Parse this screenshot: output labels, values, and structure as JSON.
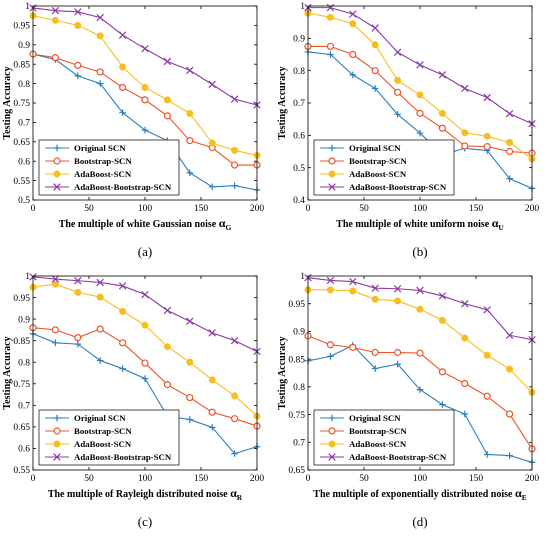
{
  "panel_labels": [
    "(a)",
    "(b)",
    "(c)",
    "(d)"
  ],
  "legend": {
    "entries": [
      "Original SCN",
      "Bootstrap-SCN",
      "AdaBoost-SCN",
      "AdaBoost-Bootstrap-SCN"
    ],
    "placement": "bottom-left"
  },
  "series_style": [
    {
      "color": "#2a7fbf",
      "marker": "plus"
    },
    {
      "color": "#f0522a",
      "marker": "circle"
    },
    {
      "color": "#f7bf1e",
      "marker": "filled-circle"
    },
    {
      "color": "#8c3aa5",
      "marker": "x"
    }
  ],
  "chart_data": [
    {
      "type": "line",
      "ylabel": "Testing Accuracy",
      "xlabel": "The multiple of white Gaussian noise",
      "xlabel_symbol": "α",
      "xlabel_sub": "G",
      "xlim": [
        0,
        200
      ],
      "ylim": [
        0.5,
        1.0
      ],
      "xticks": [
        0,
        50,
        100,
        150,
        200
      ],
      "yticks": [
        0.5,
        0.55,
        0.6,
        0.65,
        0.7,
        0.75,
        0.8,
        0.85,
        0.9,
        0.95,
        1.0
      ],
      "ytick_labels": [
        "0.5",
        "0.55",
        "0.6",
        "0.65",
        "0.7",
        "0.75",
        "0.8",
        "0.85",
        "0.9",
        "0.95",
        "1"
      ],
      "x": [
        0,
        20,
        40,
        60,
        80,
        100,
        120,
        140,
        160,
        180,
        200
      ],
      "series": [
        {
          "name": "Original SCN",
          "values": [
            0.876,
            0.862,
            0.82,
            0.8,
            0.725,
            0.68,
            0.653,
            0.57,
            0.534,
            0.537,
            0.526
          ]
        },
        {
          "name": "Bootstrap-SCN",
          "values": [
            0.876,
            0.867,
            0.847,
            0.83,
            0.79,
            0.758,
            0.717,
            0.653,
            0.635,
            0.59,
            0.59
          ]
        },
        {
          "name": "AdaBoost-SCN",
          "values": [
            0.975,
            0.963,
            0.95,
            0.923,
            0.843,
            0.79,
            0.758,
            0.723,
            0.647,
            0.628,
            0.615
          ]
        },
        {
          "name": "AdaBoost-Bootstrap-SCN",
          "values": [
            0.995,
            0.988,
            0.985,
            0.97,
            0.925,
            0.89,
            0.857,
            0.834,
            0.798,
            0.76,
            0.745
          ]
        }
      ]
    },
    {
      "type": "line",
      "ylabel": "Testing Accuracy",
      "xlabel": "The multiple of white uniform noise",
      "xlabel_symbol": "α",
      "xlabel_sub": "U",
      "xlim": [
        0,
        200
      ],
      "ylim": [
        0.4,
        1.0
      ],
      "xticks": [
        0,
        50,
        100,
        150,
        200
      ],
      "yticks": [
        0.4,
        0.5,
        0.6,
        0.7,
        0.8,
        0.9,
        1.0
      ],
      "ytick_labels": [
        "0.4",
        "0.5",
        "0.6",
        "0.7",
        "0.8",
        "0.9",
        "1"
      ],
      "x": [
        0,
        20,
        40,
        60,
        80,
        100,
        120,
        140,
        160,
        180,
        200
      ],
      "series": [
        {
          "name": "Original SCN",
          "values": [
            0.858,
            0.85,
            0.787,
            0.745,
            0.665,
            0.607,
            0.54,
            0.56,
            0.553,
            0.466,
            0.436
          ]
        },
        {
          "name": "Bootstrap-SCN",
          "values": [
            0.875,
            0.875,
            0.85,
            0.8,
            0.733,
            0.668,
            0.622,
            0.567,
            0.565,
            0.55,
            0.545
          ]
        },
        {
          "name": "AdaBoost-SCN",
          "values": [
            0.978,
            0.965,
            0.945,
            0.88,
            0.77,
            0.725,
            0.668,
            0.608,
            0.597,
            0.578,
            0.527
          ]
        },
        {
          "name": "AdaBoost-Bootstrap-SCN",
          "values": [
            0.995,
            0.995,
            0.975,
            0.932,
            0.857,
            0.818,
            0.787,
            0.745,
            0.717,
            0.667,
            0.636
          ]
        }
      ]
    },
    {
      "type": "line",
      "ylabel": "Testing Accuracy",
      "xlabel": "The multiple of Rayleigh distributed noise",
      "xlabel_symbol": "α",
      "xlabel_sub": "R",
      "xlim": [
        0,
        200
      ],
      "ylim": [
        0.55,
        1.0
      ],
      "xticks": [
        0,
        50,
        100,
        150,
        200
      ],
      "yticks": [
        0.55,
        0.6,
        0.65,
        0.7,
        0.75,
        0.8,
        0.85,
        0.9,
        0.95,
        1.0
      ],
      "ytick_labels": [
        "0.55",
        "0.6",
        "0.65",
        "0.7",
        "0.75",
        "0.8",
        "0.85",
        "0.9",
        "0.95",
        "1"
      ],
      "x": [
        0,
        20,
        40,
        60,
        80,
        100,
        120,
        140,
        160,
        180,
        200
      ],
      "series": [
        {
          "name": "Original SCN",
          "values": [
            0.866,
            0.845,
            0.842,
            0.804,
            0.785,
            0.762,
            0.675,
            0.667,
            0.649,
            0.588,
            0.604
          ]
        },
        {
          "name": "Bootstrap-SCN",
          "values": [
            0.88,
            0.875,
            0.857,
            0.877,
            0.845,
            0.798,
            0.748,
            0.718,
            0.684,
            0.669,
            0.652
          ]
        },
        {
          "name": "AdaBoost-SCN",
          "values": [
            0.974,
            0.981,
            0.962,
            0.951,
            0.918,
            0.886,
            0.836,
            0.8,
            0.759,
            0.722,
            0.675
          ]
        },
        {
          "name": "AdaBoost-Bootstrap-SCN",
          "values": [
            0.998,
            0.993,
            0.989,
            0.985,
            0.977,
            0.957,
            0.92,
            0.895,
            0.868,
            0.85,
            0.825
          ]
        }
      ]
    },
    {
      "type": "line",
      "ylabel": "Testing Accuracy",
      "xlabel": "The multiple of exponentially distributed noise",
      "xlabel_symbol": "α",
      "xlabel_sub": "E",
      "xlim": [
        0,
        200
      ],
      "ylim": [
        0.65,
        1.0
      ],
      "xticks": [
        0,
        50,
        100,
        150,
        200
      ],
      "yticks": [
        0.65,
        0.7,
        0.75,
        0.8,
        0.85,
        0.9,
        0.95,
        1.0
      ],
      "ytick_labels": [
        "0.65",
        "0.7",
        "0.75",
        "0.8",
        "0.85",
        "0.9",
        "0.95",
        "1"
      ],
      "x": [
        0,
        20,
        40,
        60,
        80,
        100,
        120,
        140,
        160,
        180,
        200
      ],
      "series": [
        {
          "name": "Original SCN",
          "values": [
            0.847,
            0.855,
            0.875,
            0.833,
            0.841,
            0.795,
            0.768,
            0.751,
            0.678,
            0.676,
            0.664
          ]
        },
        {
          "name": "Bootstrap-SCN",
          "values": [
            0.892,
            0.876,
            0.871,
            0.862,
            0.862,
            0.861,
            0.827,
            0.806,
            0.783,
            0.751,
            0.688
          ]
        },
        {
          "name": "AdaBoost-SCN",
          "values": [
            0.975,
            0.975,
            0.973,
            0.958,
            0.955,
            0.94,
            0.92,
            0.888,
            0.857,
            0.832,
            0.79
          ]
        },
        {
          "name": "AdaBoost-Bootstrap-SCN",
          "values": [
            0.997,
            0.992,
            0.99,
            0.978,
            0.977,
            0.974,
            0.964,
            0.95,
            0.939,
            0.893,
            0.885
          ]
        }
      ]
    }
  ]
}
